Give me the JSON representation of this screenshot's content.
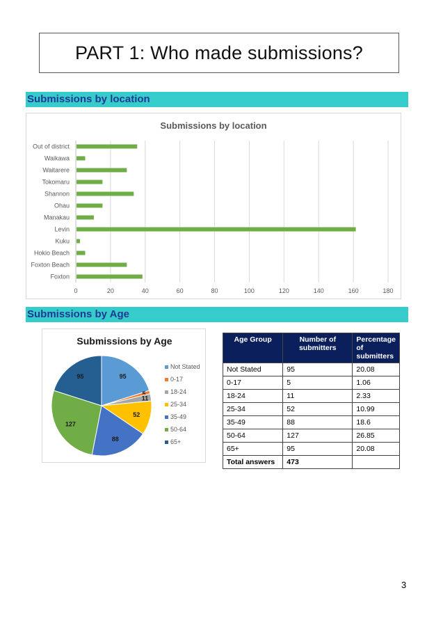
{
  "page": {
    "title": "PART 1: Who made submissions?",
    "page_number": "3"
  },
  "sections": {
    "location": "Submissions by location",
    "age": "Submissions by Age"
  },
  "colors": {
    "section_bar": "#36cccc",
    "section_text": "#1f3a93",
    "bar": "#70ad47",
    "table_header": "#0a1f5c"
  },
  "chart_data": [
    {
      "type": "bar",
      "orientation": "horizontal",
      "title": "Submissions by location",
      "categories": [
        "Out of district",
        "Waikawa",
        "Waitarere",
        "Tokomaru",
        "Shannon",
        "Ohau",
        "Manakau",
        "Levin",
        "Kuku",
        "Hokio Beach",
        "Foxton Beach",
        "Foxton"
      ],
      "values": [
        35,
        5,
        29,
        15,
        33,
        15,
        10,
        161,
        2,
        5,
        29,
        38
      ],
      "xlim": [
        0,
        180
      ],
      "xticks": [
        0,
        20,
        40,
        60,
        80,
        100,
        120,
        140,
        160,
        180
      ],
      "grid": true,
      "color": "#70ad47"
    },
    {
      "type": "pie",
      "title": "Submissions by Age",
      "legend_position": "right",
      "slices": [
        {
          "label": "Not Stated",
          "value": 95,
          "color": "#5b9bd5"
        },
        {
          "label": "0-17",
          "value": 5,
          "color": "#ed7d31"
        },
        {
          "label": "18-24",
          "value": 11,
          "color": "#a5a5a5"
        },
        {
          "label": "25-34",
          "value": 52,
          "color": "#ffc000"
        },
        {
          "label": "35-49",
          "value": 88,
          "color": "#4472c4"
        },
        {
          "label": "50-64",
          "value": 127,
          "color": "#70ad47"
        },
        {
          "label": "65+",
          "value": 95,
          "color": "#255e91"
        }
      ]
    }
  ],
  "age_table": {
    "headers": [
      "Age Group",
      "Number of submitters",
      "Percentage of submitters"
    ],
    "rows": [
      [
        "Not Stated",
        "95",
        "20.08"
      ],
      [
        "0-17",
        "5",
        "1.06"
      ],
      [
        "18-24",
        "11",
        "2.33"
      ],
      [
        "25-34",
        "52",
        "10.99"
      ],
      [
        "35-49",
        "88",
        "18.6"
      ],
      [
        "50-64",
        "127",
        "26.85"
      ],
      [
        "65+",
        "95",
        "20.08"
      ]
    ],
    "total": [
      "Total answers",
      "473",
      ""
    ]
  }
}
